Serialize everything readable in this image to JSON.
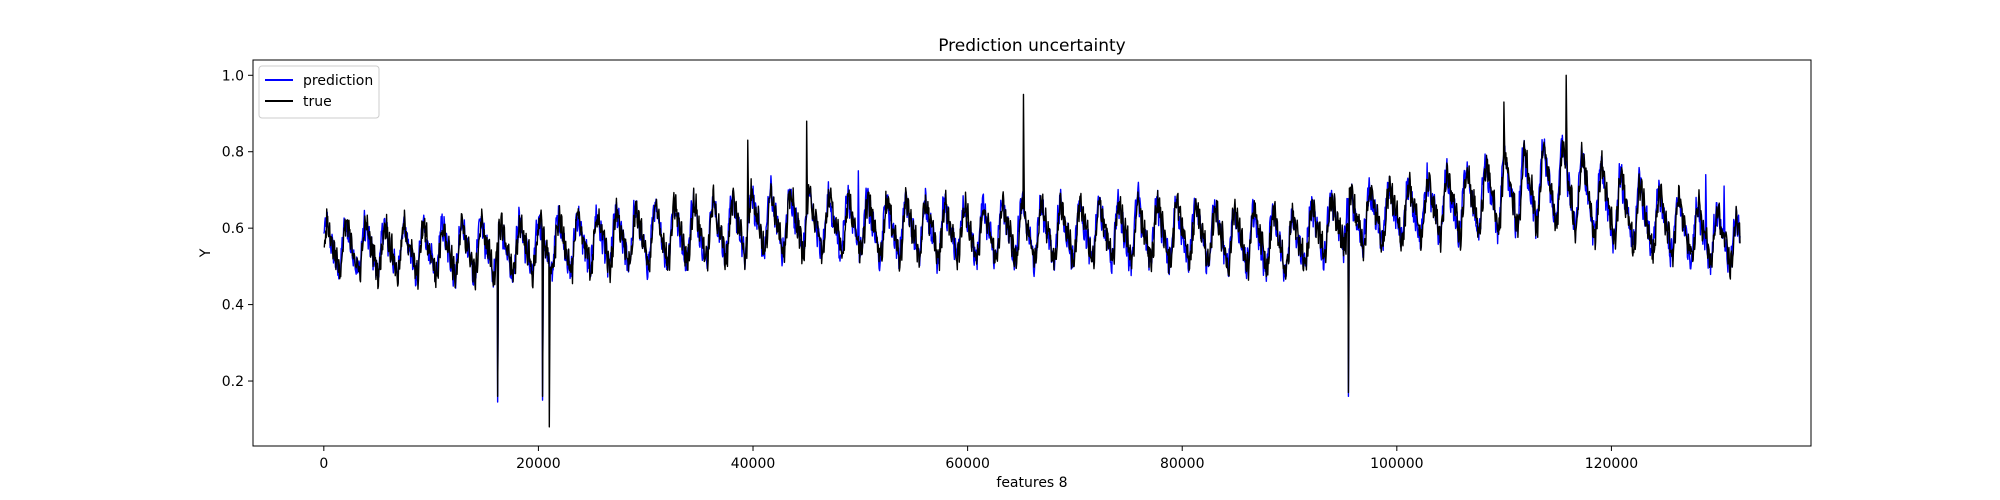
{
  "chart_data": {
    "type": "line",
    "title": "Prediction uncertainty",
    "xlabel": "features 8",
    "ylabel": "Y",
    "xlim": [
      -6600,
      138600
    ],
    "ylim": [
      0.03,
      1.04
    ],
    "xticks": [
      0,
      20000,
      40000,
      60000,
      80000,
      100000,
      120000
    ],
    "xtick_labels": [
      "0",
      "20000",
      "40000",
      "60000",
      "80000",
      "100000",
      "120000"
    ],
    "yticks": [
      0.2,
      0.4,
      0.6,
      0.8,
      1.0
    ],
    "ytick_labels": [
      "0.2",
      "0.4",
      "0.6",
      "0.8",
      "1.0"
    ],
    "grid": false,
    "legend_position": "upper-left",
    "series": [
      {
        "name": "prediction",
        "color": "#0000ff",
        "x_range": [
          0,
          132000
        ],
        "baseline": [
          [
            0,
            0.55
          ],
          [
            10000,
            0.54
          ],
          [
            20000,
            0.55
          ],
          [
            38000,
            0.6
          ],
          [
            40000,
            0.62
          ],
          [
            60000,
            0.59
          ],
          [
            80000,
            0.59
          ],
          [
            90000,
            0.56
          ],
          [
            95000,
            0.62
          ],
          [
            105000,
            0.66
          ],
          [
            115000,
            0.72
          ],
          [
            120000,
            0.66
          ],
          [
            125000,
            0.61
          ],
          [
            132000,
            0.56
          ]
        ],
        "amplitude": [
          [
            0,
            0.07
          ],
          [
            20000,
            0.08
          ],
          [
            40000,
            0.09
          ],
          [
            60000,
            0.08
          ],
          [
            80000,
            0.09
          ],
          [
            100000,
            0.08
          ],
          [
            115000,
            0.12
          ],
          [
            125000,
            0.09
          ],
          [
            132000,
            0.07
          ]
        ],
        "spikes": [
          [
            16200,
            0.145
          ],
          [
            20400,
            0.15
          ],
          [
            95500,
            0.16
          ],
          [
            49800,
            0.75
          ],
          [
            75900,
            0.72
          ],
          [
            128800,
            0.74
          ],
          [
            130500,
            0.71
          ]
        ]
      },
      {
        "name": "true",
        "color": "#000000",
        "x_range": [
          0,
          132000
        ],
        "baseline": [
          [
            0,
            0.55
          ],
          [
            10000,
            0.54
          ],
          [
            20000,
            0.55
          ],
          [
            38000,
            0.6
          ],
          [
            40000,
            0.62
          ],
          [
            60000,
            0.59
          ],
          [
            80000,
            0.59
          ],
          [
            90000,
            0.56
          ],
          [
            95000,
            0.62
          ],
          [
            105000,
            0.66
          ],
          [
            115000,
            0.72
          ],
          [
            120000,
            0.66
          ],
          [
            125000,
            0.61
          ],
          [
            132000,
            0.56
          ]
        ],
        "amplitude": [
          [
            0,
            0.07
          ],
          [
            20000,
            0.08
          ],
          [
            40000,
            0.09
          ],
          [
            60000,
            0.08
          ],
          [
            80000,
            0.09
          ],
          [
            100000,
            0.08
          ],
          [
            115000,
            0.12
          ],
          [
            125000,
            0.09
          ],
          [
            132000,
            0.07
          ]
        ],
        "spikes": [
          [
            16200,
            0.16
          ],
          [
            20400,
            0.16
          ],
          [
            21000,
            0.08
          ],
          [
            45000,
            0.88
          ],
          [
            65200,
            0.95
          ],
          [
            95500,
            0.17
          ],
          [
            115800,
            1.0
          ],
          [
            110000,
            0.93
          ],
          [
            39500,
            0.83
          ]
        ]
      }
    ]
  }
}
